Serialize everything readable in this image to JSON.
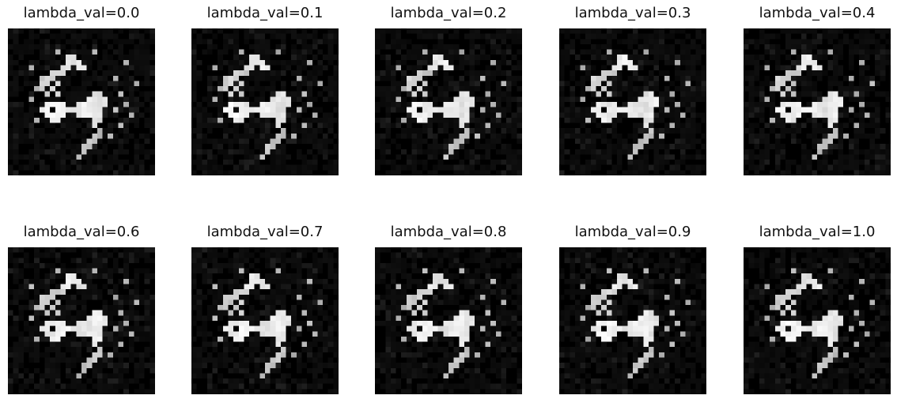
{
  "figure": {
    "panels": [
      {
        "title": "lambda_val=0.0",
        "lambda_val": 0.0
      },
      {
        "title": "lambda_val=0.1",
        "lambda_val": 0.1
      },
      {
        "title": "lambda_val=0.2",
        "lambda_val": 0.2
      },
      {
        "title": "lambda_val=0.3",
        "lambda_val": 0.3
      },
      {
        "title": "lambda_val=0.4",
        "lambda_val": 0.4
      },
      {
        "title": "lambda_val=0.6",
        "lambda_val": 0.6
      },
      {
        "title": "lambda_val=0.7",
        "lambda_val": 0.7
      },
      {
        "title": "lambda_val=0.8",
        "lambda_val": 0.8
      },
      {
        "title": "lambda_val=0.9",
        "lambda_val": 0.9
      },
      {
        "title": "lambda_val=1.0",
        "lambda_val": 1.0
      }
    ],
    "image_style": "grayscale pixel grid",
    "colors": {
      "background": "#ffffff",
      "pixel_dark": "#000000",
      "pixel_light": "#ffffff"
    }
  }
}
